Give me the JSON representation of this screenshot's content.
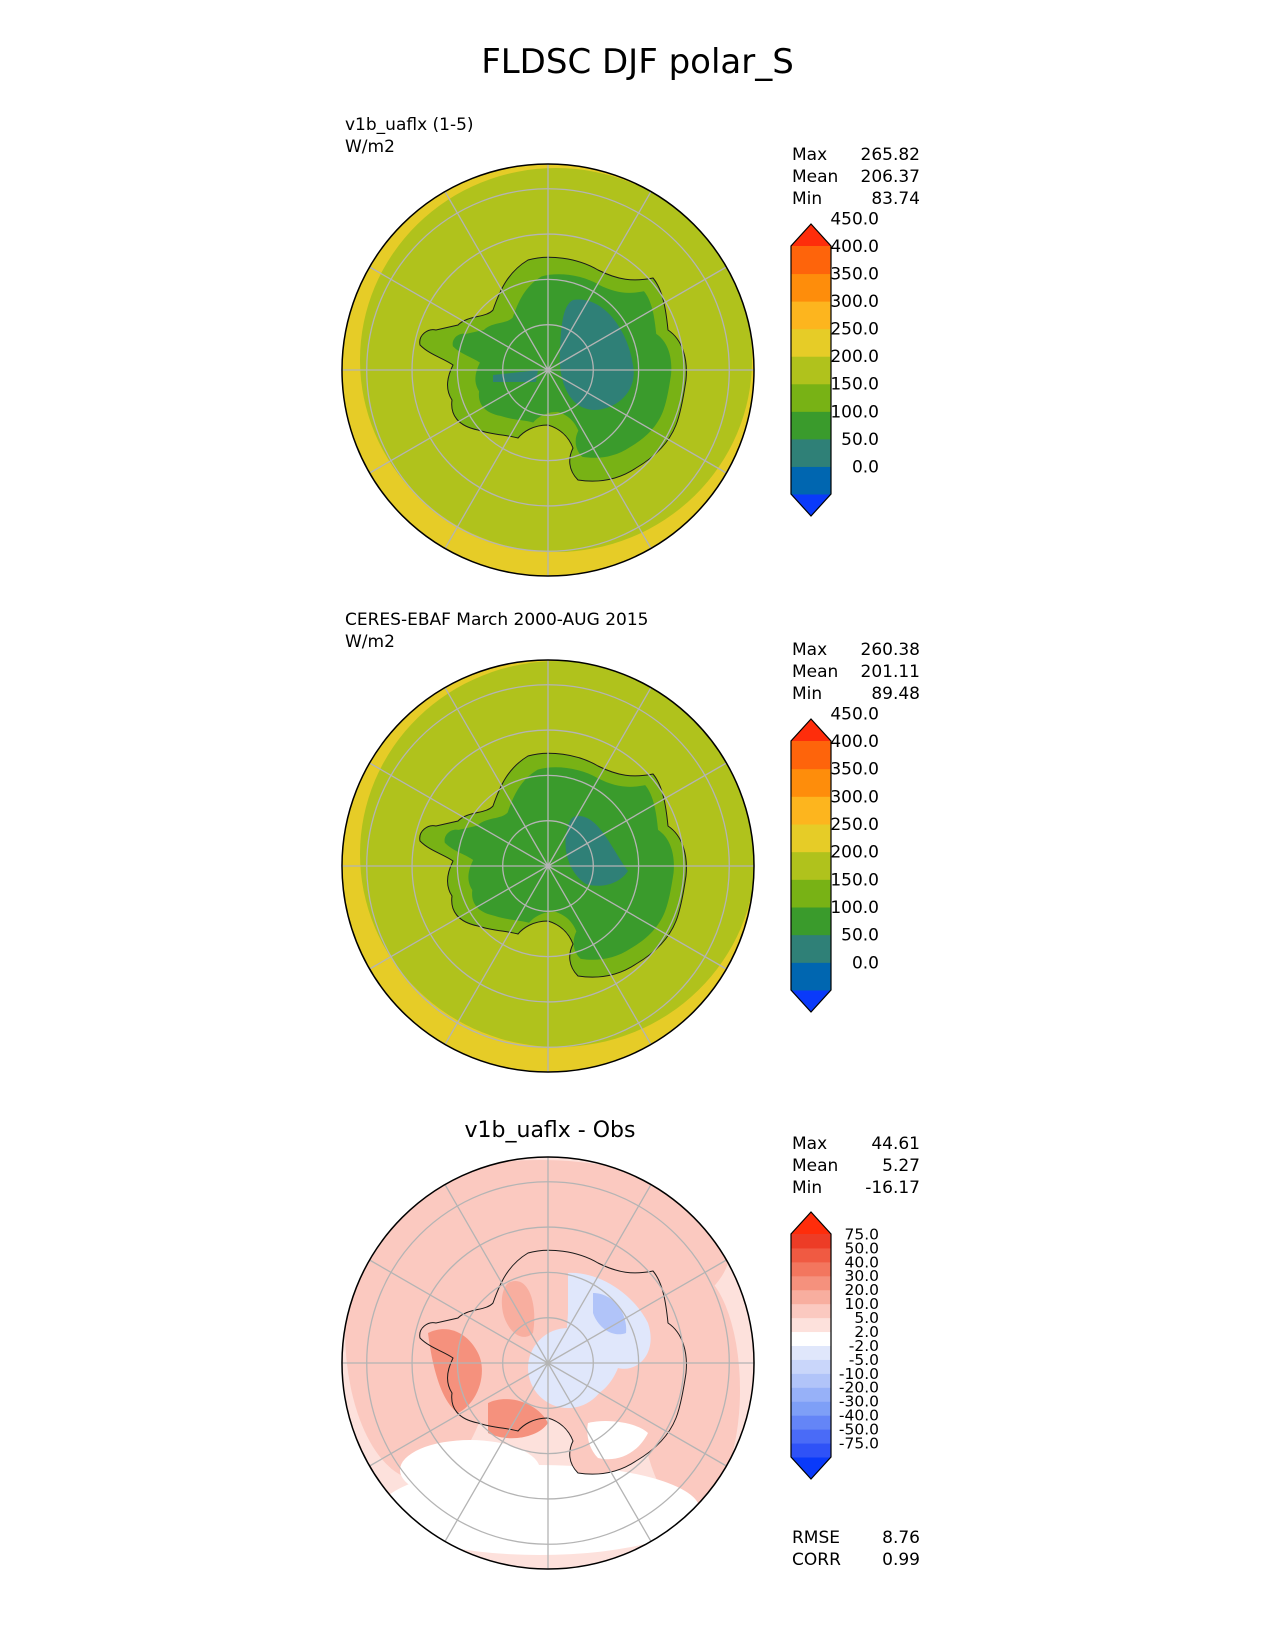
{
  "title": "FLDSC DJF polar_S",
  "colors": {
    "abs_bins": [
      "#0a3afa",
      "#0066b0",
      "#2f8077",
      "#3a9b2c",
      "#78b215",
      "#b0c21c",
      "#e6cc27",
      "#fdb51e",
      "#fe8d0b",
      "#fe640b",
      "#fe2d0b"
    ],
    "diff_bins": [
      "#0a3afa",
      "#2f52f7",
      "#4a6bf7",
      "#6485f7",
      "#7e9ff7",
      "#97b1f8",
      "#b1c4f9",
      "#c9d6fa",
      "#e0e7fb",
      "#ffffff",
      "#fde1dc",
      "#fbc9c0",
      "#f8ae9f",
      "#f5917d",
      "#f3765e",
      "#f05a42",
      "#ed3c26",
      "#fe2d0b"
    ],
    "grid": "#b4b4b4",
    "coast": "#1a1a1a"
  },
  "panels": [
    {
      "id": "test",
      "label_line1": "v1b_uaflx (1-5)",
      "label_line2": "W/m2",
      "stats": {
        "max_label": "Max",
        "max": "265.82",
        "mean_label": "Mean",
        "mean": "206.37",
        "min_label": "Min",
        "min": "83.74"
      },
      "colorbar_ticks": [
        "0.0",
        "50.0",
        "100.0",
        "150.0",
        "200.0",
        "250.0",
        "300.0",
        "350.0",
        "400.0",
        "450.0"
      ]
    },
    {
      "id": "reference",
      "label_line1": "CERES-EBAF March 2000-AUG 2015",
      "label_line2": "W/m2",
      "stats": {
        "max_label": "Max",
        "max": "260.38",
        "mean_label": "Mean",
        "mean": "201.11",
        "min_label": "Min",
        "min": "89.48"
      },
      "colorbar_ticks": [
        "0.0",
        "50.0",
        "100.0",
        "150.0",
        "200.0",
        "250.0",
        "300.0",
        "350.0",
        "400.0",
        "450.0"
      ]
    },
    {
      "id": "diff",
      "title": "v1b_uaflx - Obs",
      "stats": {
        "max_label": "Max",
        "max": "44.61",
        "mean_label": "Mean",
        "mean": "5.27",
        "min_label": "Min",
        "min": "-16.17"
      },
      "colorbar_ticks": [
        "-75.0",
        "-50.0",
        "-40.0",
        "-30.0",
        "-20.0",
        "-10.0",
        "-5.0",
        "-2.0",
        "2.0",
        "5.0",
        "10.0",
        "20.0",
        "30.0",
        "40.0",
        "50.0",
        "75.0"
      ],
      "metrics": {
        "rmse_label": "RMSE",
        "rmse": "8.76",
        "corr_label": "CORR",
        "corr": "0.99"
      }
    }
  ],
  "chart_data": [
    {
      "type": "heatmap",
      "projection": "polar stereographic (South Pole)",
      "title": "v1b_uaflx (1-5)",
      "units": "W/m2",
      "levels": [
        0,
        50,
        100,
        150,
        200,
        250,
        300,
        350,
        400,
        450
      ],
      "max": 265.82,
      "mean": 206.37,
      "min": 83.74
    },
    {
      "type": "heatmap",
      "projection": "polar stereographic (South Pole)",
      "title": "CERES-EBAF March 2000-AUG 2015",
      "units": "W/m2",
      "levels": [
        0,
        50,
        100,
        150,
        200,
        250,
        300,
        350,
        400,
        450
      ],
      "max": 260.38,
      "mean": 201.11,
      "min": 89.48
    },
    {
      "type": "heatmap",
      "projection": "polar stereographic (South Pole)",
      "title": "v1b_uaflx - Obs",
      "levels": [
        -75,
        -50,
        -40,
        -30,
        -20,
        -10,
        -5,
        -2,
        2,
        5,
        10,
        20,
        30,
        40,
        50,
        75
      ],
      "max": 44.61,
      "mean": 5.27,
      "min": -16.17,
      "rmse": 8.76,
      "corr": 0.99
    }
  ]
}
